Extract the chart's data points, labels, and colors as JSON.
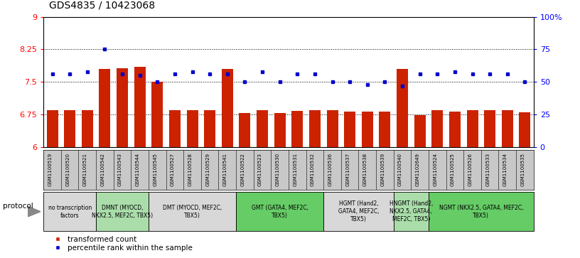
{
  "title": "GDS4835 / 10423068",
  "samples": [
    "GSM1100519",
    "GSM1100520",
    "GSM1100521",
    "GSM1100542",
    "GSM1100543",
    "GSM1100544",
    "GSM1100545",
    "GSM1100527",
    "GSM1100528",
    "GSM1100529",
    "GSM1100541",
    "GSM1100522",
    "GSM1100523",
    "GSM1100530",
    "GSM1100531",
    "GSM1100532",
    "GSM1100536",
    "GSM1100537",
    "GSM1100538",
    "GSM1100539",
    "GSM1100540",
    "GSM1102649",
    "GSM1100524",
    "GSM1100525",
    "GSM1100526",
    "GSM1100533",
    "GSM1100534",
    "GSM1100535"
  ],
  "bar_values": [
    6.85,
    6.85,
    6.85,
    7.8,
    7.82,
    7.85,
    7.5,
    6.85,
    6.85,
    6.85,
    7.8,
    6.78,
    6.85,
    6.78,
    6.83,
    6.85,
    6.85,
    6.82,
    6.82,
    6.82,
    7.8,
    6.73,
    6.85,
    6.82,
    6.85,
    6.85,
    6.85,
    6.8
  ],
  "percentile_values": [
    56,
    56,
    58,
    75,
    56,
    55,
    50,
    56,
    58,
    56,
    56,
    50,
    58,
    50,
    56,
    56,
    50,
    50,
    48,
    50,
    47,
    56,
    56,
    58,
    56,
    56,
    56,
    50
  ],
  "protocol_groups": [
    {
      "label": "no transcription\nfactors",
      "start": 0,
      "end": 3,
      "color": "#d8d8d8"
    },
    {
      "label": "DMNT (MYOCD,\nNKX2.5, MEF2C, TBX5)",
      "start": 3,
      "end": 6,
      "color": "#aaddaa"
    },
    {
      "label": "DMT (MYOCD, MEF2C,\nTBX5)",
      "start": 6,
      "end": 11,
      "color": "#d8d8d8"
    },
    {
      "label": "GMT (GATA4, MEF2C,\nTBX5)",
      "start": 11,
      "end": 16,
      "color": "#66cc66"
    },
    {
      "label": "HGMT (Hand2,\nGATA4, MEF2C,\nTBX5)",
      "start": 16,
      "end": 20,
      "color": "#d8d8d8"
    },
    {
      "label": "HNGMT (Hand2,\nNKX2.5, GATA4,\nMEF2C, TBX5)",
      "start": 20,
      "end": 22,
      "color": "#aaddaa"
    },
    {
      "label": "NGMT (NKX2.5, GATA4, MEF2C,\nTBX5)",
      "start": 22,
      "end": 28,
      "color": "#66cc66"
    }
  ],
  "ylim": [
    6.0,
    9.0
  ],
  "y2lim": [
    0,
    100
  ],
  "yticks": [
    6.0,
    6.75,
    7.5,
    8.25,
    9.0
  ],
  "ytick_labels": [
    "6",
    "6.75",
    "7.5",
    "8.25",
    "9"
  ],
  "y2ticks": [
    0,
    25,
    50,
    75,
    100
  ],
  "y2tick_labels": [
    "0",
    "25",
    "50",
    "75",
    "100%"
  ],
  "bar_color": "#cc2200",
  "dot_color": "#0000cc",
  "bg_color": "#ffffff",
  "sample_row_color": "#c8c8c8",
  "dotted_lines": [
    6.75,
    7.5,
    8.25
  ],
  "title_fontsize": 10,
  "bar_width": 0.65
}
